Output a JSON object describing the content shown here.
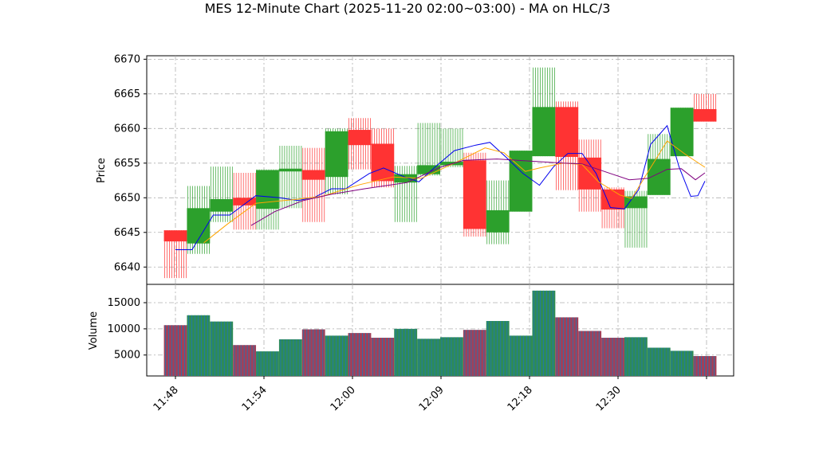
{
  "chart_data": {
    "type": "bar",
    "title": "MES 12-Minute Chart (2025-11-20 02:00~03:00) - MA on HLC/3",
    "price_panel": {
      "ylabel": "Price",
      "ylim": [
        6637.5,
        6670.5
      ],
      "yticks": [
        "6640",
        "6645",
        "6650",
        "6655",
        "6660",
        "6665",
        "6670"
      ],
      "grid": true
    },
    "volume_panel": {
      "ylabel": "Volume",
      "ylim": [
        1000,
        18500
      ],
      "yticks": [
        "5000",
        "10000",
        "15000"
      ],
      "grid": true
    },
    "x_ticks": [
      "11:48",
      "11:54",
      "12:00",
      "12:09",
      "12:18",
      "12:30"
    ],
    "colors": {
      "up": "#2ca02c",
      "down": "#ff3333",
      "vol_up": "#2e8b57",
      "vol_down": "#a0405a",
      "ma_fast": "#0000ee",
      "ma_mid": "#ffa500",
      "ma_slow": "#800080"
    },
    "bars": [
      {
        "time": "11:48",
        "open": 6645.3,
        "high": 6645.3,
        "low": 6638.4,
        "close": 6643.7,
        "volume": 10700
      },
      {
        "time": "11:51",
        "open": 6643.4,
        "high": 6651.7,
        "low": 6641.9,
        "close": 6648.5,
        "volume": 12600
      },
      {
        "time": "11:54",
        "open": 6648.0,
        "high": 6654.5,
        "low": 6646.5,
        "close": 6649.8,
        "volume": 11400
      },
      {
        "time": "11:57",
        "open": 6650.0,
        "high": 6653.6,
        "low": 6645.4,
        "close": 6648.9,
        "volume": 6900
      },
      {
        "time": "11:59",
        "open": 6648.4,
        "high": 6654.1,
        "low": 6645.4,
        "close": 6654.0,
        "volume": 5700
      },
      {
        "time": "12:02",
        "open": 6653.8,
        "high": 6657.5,
        "low": 6648.5,
        "close": 6654.2,
        "volume": 8000
      },
      {
        "time": "12:05",
        "open": 6654.0,
        "high": 6657.2,
        "low": 6646.5,
        "close": 6652.6,
        "volume": 9900
      },
      {
        "time": "12:09",
        "open": 6653.0,
        "high": 6660.0,
        "low": 6650.5,
        "close": 6659.6,
        "volume": 8700
      },
      {
        "time": "12:12",
        "open": 6659.8,
        "high": 6661.5,
        "low": 6654.1,
        "close": 6657.6,
        "volume": 9200
      },
      {
        "time": "12:15",
        "open": 6657.8,
        "high": 6660.0,
        "low": 6651.5,
        "close": 6652.4,
        "volume": 8300
      },
      {
        "time": "12:18",
        "open": 6652.2,
        "high": 6654.6,
        "low": 6646.5,
        "close": 6653.4,
        "volume": 10000
      },
      {
        "time": "12:20",
        "open": 6653.4,
        "high": 6660.8,
        "low": 6653.2,
        "close": 6654.7,
        "volume": 8100
      },
      {
        "time": "12:23",
        "open": 6654.7,
        "high": 6660.0,
        "low": 6654.4,
        "close": 6655.2,
        "volume": 8400
      },
      {
        "time": "12:27",
        "open": 6655.4,
        "high": 6656.5,
        "low": 6644.4,
        "close": 6645.5,
        "volume": 9800
      },
      {
        "time": "12:30",
        "open": 6645.0,
        "high": 6652.5,
        "low": 6643.3,
        "close": 6648.2,
        "volume": 11500
      },
      {
        "time": "12:32",
        "open": 6648.0,
        "high": 6656.8,
        "low": 6648.0,
        "close": 6656.8,
        "volume": 8700
      },
      {
        "time": "12:34",
        "open": 6656.0,
        "high": 6668.8,
        "low": 6656.0,
        "close": 6663.1,
        "volume": 17300
      },
      {
        "time": "12:37",
        "open": 6663.1,
        "high": 6663.9,
        "low": 6651.1,
        "close": 6655.9,
        "volume": 12200
      },
      {
        "time": "12:39",
        "open": 6655.8,
        "high": 6658.4,
        "low": 6648.0,
        "close": 6651.2,
        "volume": 9600
      },
      {
        "time": "12:41",
        "open": 6651.2,
        "high": 6651.5,
        "low": 6645.6,
        "close": 6648.3,
        "volume": 8300
      },
      {
        "time": "12:43",
        "open": 6648.5,
        "high": 6651.0,
        "low": 6642.8,
        "close": 6650.2,
        "volume": 8400
      },
      {
        "time": "12:44",
        "open": 6650.4,
        "high": 6659.2,
        "low": 6650.4,
        "close": 6655.6,
        "volume": 6400
      },
      {
        "time": "12:45",
        "open": 6656.0,
        "high": 6663.0,
        "low": 6656.0,
        "close": 6663.0,
        "volume": 5800
      },
      {
        "time": "12:46",
        "open": 6662.8,
        "high": 6665.0,
        "low": 6661.0,
        "close": 6661.0,
        "volume": 4800
      }
    ],
    "ma_lines": [
      {
        "color_key": "ma_fast",
        "values": [
          [
            0.04,
            6642.5
          ],
          [
            0.075,
            6642.5
          ],
          [
            0.12,
            6647.5
          ],
          [
            0.155,
            6647.5
          ],
          [
            0.21,
            6650.3
          ],
          [
            0.26,
            6650.0
          ],
          [
            0.3,
            6649.6
          ],
          [
            0.335,
            6650.1
          ],
          [
            0.37,
            6651.3
          ],
          [
            0.4,
            6651.3
          ],
          [
            0.45,
            6653.5
          ],
          [
            0.48,
            6654.3
          ],
          [
            0.525,
            6653.0
          ],
          [
            0.555,
            6652.3
          ],
          [
            0.59,
            6654.5
          ],
          [
            0.63,
            6656.8
          ],
          [
            0.675,
            6657.6
          ],
          [
            0.705,
            6658.0
          ],
          [
            0.74,
            6655.8
          ],
          [
            0.775,
            6653.5
          ],
          [
            0.81,
            6651.8
          ],
          [
            0.84,
            6654.5
          ],
          [
            0.87,
            6656.4
          ],
          [
            0.9,
            6656.4
          ],
          [
            0.93,
            6653.5
          ],
          [
            0.96,
            6648.6
          ],
          [
            0.99,
            6648.4
          ],
          [
            1.02,
            6651.2
          ],
          [
            1.045,
            6657.7
          ],
          [
            1.08,
            6660.4
          ],
          [
            1.105,
            6654.5
          ],
          [
            1.13,
            6650.2
          ],
          [
            1.145,
            6650.3
          ],
          [
            1.16,
            6652.4
          ]
        ]
      },
      {
        "color_key": "ma_mid",
        "values": [
          [
            0.1,
            6643.5
          ],
          [
            0.15,
            6646.2
          ],
          [
            0.21,
            6649.2
          ],
          [
            0.3,
            6649.8
          ],
          [
            0.35,
            6650.2
          ],
          [
            0.43,
            6651.9
          ],
          [
            0.5,
            6653.0
          ],
          [
            0.56,
            6652.8
          ],
          [
            0.63,
            6655.0
          ],
          [
            0.695,
            6657.2
          ],
          [
            0.735,
            6656.5
          ],
          [
            0.78,
            6653.8
          ],
          [
            0.81,
            6654.3
          ],
          [
            0.86,
            6655.0
          ],
          [
            0.9,
            6654.8
          ],
          [
            0.935,
            6652.3
          ],
          [
            0.98,
            6650.4
          ],
          [
            1.005,
            6649.9
          ],
          [
            1.04,
            6653.8
          ],
          [
            1.08,
            6658.2
          ],
          [
            1.12,
            6656.2
          ],
          [
            1.16,
            6654.4
          ]
        ]
      },
      {
        "color_key": "ma_slow",
        "values": [
          [
            0.2,
            6646.0
          ],
          [
            0.25,
            6648.0
          ],
          [
            0.31,
            6649.6
          ],
          [
            0.37,
            6650.5
          ],
          [
            0.44,
            6651.3
          ],
          [
            0.53,
            6652.2
          ],
          [
            0.6,
            6654.4
          ],
          [
            0.65,
            6655.4
          ],
          [
            0.72,
            6655.6
          ],
          [
            0.79,
            6655.3
          ],
          [
            0.86,
            6655.0
          ],
          [
            0.9,
            6654.9
          ],
          [
            0.96,
            6653.5
          ],
          [
            1.0,
            6652.6
          ],
          [
            1.04,
            6652.8
          ],
          [
            1.08,
            6654.1
          ],
          [
            1.11,
            6654.2
          ],
          [
            1.14,
            6652.6
          ],
          [
            1.16,
            6653.6
          ]
        ]
      }
    ]
  }
}
